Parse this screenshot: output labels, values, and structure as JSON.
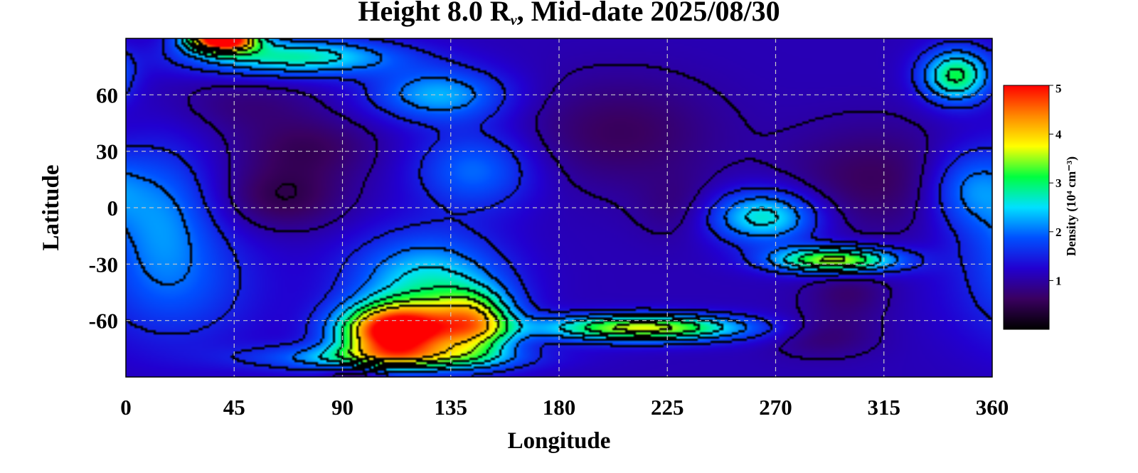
{
  "chart_data": {
    "type": "heatmap",
    "title_main": "Height 8.0 R",
    "title_sub": "ν",
    "title_rest": ", Mid-date 2025/08/30",
    "xlabel": "Longitude",
    "ylabel": "Latitude",
    "xlim": [
      0,
      360
    ],
    "ylim": [
      -90,
      90
    ],
    "xticks": [
      0,
      45,
      90,
      135,
      180,
      225,
      270,
      315,
      360
    ],
    "yticks": [
      60,
      30,
      0,
      -30,
      -60
    ],
    "x_gridlines": [
      45,
      90,
      135,
      180,
      225,
      270,
      315
    ],
    "y_gridlines": [
      60,
      30,
      0,
      -30,
      -60
    ],
    "grid": true,
    "colorbar": {
      "label": "Density (10⁴ cm⁻³)",
      "range": [
        0,
        5
      ],
      "ticks": [
        1,
        2,
        3,
        4,
        5
      ],
      "colors": [
        "#000000",
        "#3a0060",
        "#2200d0",
        "#0050ff",
        "#00e0ff",
        "#00ff40",
        "#ffff00",
        "#ff8800",
        "#ff0000"
      ]
    },
    "background_density": 1.1,
    "features": [
      {
        "lon": 112,
        "lat": -66,
        "sx": 16,
        "sy": 10,
        "value": 4.2
      },
      {
        "lon": 145,
        "lat": -62,
        "sx": 12,
        "sy": 12,
        "value": 2.4
      },
      {
        "lon": 125,
        "lat": -40,
        "sx": 22,
        "sy": 18,
        "value": 1.5
      },
      {
        "lon": 110,
        "lat": -80,
        "sx": 35,
        "sy": 5,
        "value": 1.6
      },
      {
        "lon": 215,
        "lat": -64,
        "sx": 30,
        "sy": 5,
        "value": 2.6
      },
      {
        "lon": 295,
        "lat": -28,
        "sx": 18,
        "sy": 5,
        "value": 2.6
      },
      {
        "lon": 265,
        "lat": -5,
        "sx": 16,
        "sy": 10,
        "value": 1.6
      },
      {
        "lon": 70,
        "lat": 80,
        "sx": 30,
        "sy": 7,
        "value": 1.7
      },
      {
        "lon": 130,
        "lat": 60,
        "sx": 20,
        "sy": 10,
        "value": 1.2
      },
      {
        "lon": 345,
        "lat": 70,
        "sx": 10,
        "sy": 10,
        "value": 2.0
      },
      {
        "lon": 15,
        "lat": 0,
        "sx": 15,
        "sy": 25,
        "value": 0.8
      },
      {
        "lon": 20,
        "lat": -40,
        "sx": 25,
        "sy": 25,
        "value": 0.7
      },
      {
        "lon": 145,
        "lat": 20,
        "sx": 18,
        "sy": 15,
        "value": 0.9
      },
      {
        "lon": 350,
        "lat": 10,
        "sx": 12,
        "sy": 15,
        "value": 0.9
      },
      {
        "lon": 65,
        "lat": 5,
        "sx": 18,
        "sy": 12,
        "value": -0.6
      },
      {
        "lon": 75,
        "lat": 32,
        "sx": 20,
        "sy": 12,
        "value": -0.5
      },
      {
        "lon": 205,
        "lat": 40,
        "sx": 28,
        "sy": 20,
        "value": -0.5
      },
      {
        "lon": 310,
        "lat": 15,
        "sx": 25,
        "sy": 20,
        "value": -0.5
      },
      {
        "lon": 300,
        "lat": -45,
        "sx": 12,
        "sy": 10,
        "value": -0.4
      },
      {
        "lon": 50,
        "lat": 55,
        "sx": 20,
        "sy": 10,
        "value": -0.3
      },
      {
        "lon": 40,
        "lat": 90,
        "sx": 10,
        "sy": 5,
        "value": 4.5
      },
      {
        "lon": 95,
        "lat": -90,
        "sx": 8,
        "sy": 5,
        "value": -0.7
      },
      {
        "lon": 230,
        "lat": 0,
        "sx": 12,
        "sy": 12,
        "value": -0.3
      },
      {
        "lon": 290,
        "lat": -68,
        "sx": 15,
        "sy": 8,
        "value": -0.4
      }
    ]
  }
}
